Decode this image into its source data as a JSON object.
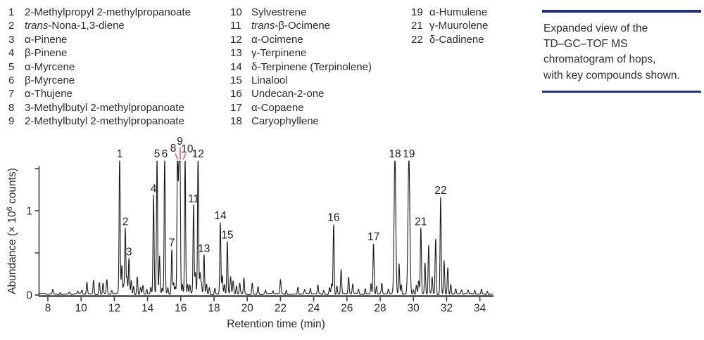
{
  "legend": {
    "columns": [
      [
        {
          "n": "1",
          "pre": "",
          "name": "2-Methylpropyl 2-methylpropanoate"
        },
        {
          "n": "2",
          "pre": "trans",
          "name": "-Nona-1,3-diene"
        },
        {
          "n": "3",
          "pre": "",
          "name": "α-Pinene"
        },
        {
          "n": "4",
          "pre": "",
          "name": "β-Pinene"
        },
        {
          "n": "5",
          "pre": "",
          "name": "α-Myrcene"
        },
        {
          "n": "6",
          "pre": "",
          "name": "β-Myrcene"
        },
        {
          "n": "7",
          "pre": "",
          "name": "α-Thujene"
        },
        {
          "n": "8",
          "pre": "",
          "name": "3-Methylbutyl 2-methylpropanoate"
        },
        {
          "n": "9",
          "pre": "",
          "name": "2-Methylbutyl 2-methylpropanoate"
        }
      ],
      [
        {
          "n": "10",
          "pre": "",
          "name": "Sylvestrene"
        },
        {
          "n": "11",
          "pre": "trans",
          "name": "-β-Ocimene"
        },
        {
          "n": "12",
          "pre": "",
          "name": "α-Ocimene"
        },
        {
          "n": "13",
          "pre": "",
          "name": "γ-Terpinene"
        },
        {
          "n": "14",
          "pre": "",
          "name": "δ-Terpinene (Terpinolene)"
        },
        {
          "n": "15",
          "pre": "",
          "name": "Linalool"
        },
        {
          "n": "16",
          "pre": "",
          "name": "Undecan-2-one"
        },
        {
          "n": "17",
          "pre": "",
          "name": "α-Copaene"
        },
        {
          "n": "18",
          "pre": "",
          "name": "Caryophyllene"
        }
      ],
      [
        {
          "n": "19",
          "pre": "",
          "name": "α-Humulene"
        },
        {
          "n": "21",
          "pre": "",
          "name": "γ-Muurolene"
        },
        {
          "n": "22",
          "pre": "",
          "name": "δ-Cadinene"
        }
      ]
    ]
  },
  "caption": {
    "accent_color": "#262f87",
    "lines": [
      "Expanded view of the",
      "TD–GC–TOF MS",
      "chromatogram of hops,",
      "with key compounds shown."
    ]
  },
  "chart_data": {
    "type": "line",
    "title": "",
    "xlabel": "Retention time (min)",
    "ylabel": "Abundance (× 10⁶ counts)",
    "ylabel_parts": {
      "prefix": "Abundance (× 10",
      "sup": "6",
      "suffix": " counts)"
    },
    "xlim": [
      7.45,
      34.8
    ],
    "ylim": [
      0,
      1.6
    ],
    "x_ticks": [
      8,
      10,
      12,
      14,
      16,
      18,
      20,
      22,
      24,
      26,
      28,
      30,
      32,
      34
    ],
    "y_ticks_major": [
      0,
      1
    ],
    "y_tick_labels": [
      "0",
      "1"
    ],
    "y_ticks_minor": [
      0.5,
      1.5
    ],
    "clip_level": 1.59,
    "grid": false,
    "trace_color": "#1b1b1b",
    "axis_color": "#3f3f3f",
    "label_color": "#1e1e1e",
    "leader_color": "#e85e79",
    "peaks": [
      {
        "t": 8.3,
        "h": 0.055
      },
      {
        "t": 8.75,
        "h": 0.025
      },
      {
        "t": 9.3,
        "h": 0.02
      },
      {
        "t": 9.8,
        "h": 0.03
      },
      {
        "t": 10.05,
        "h": 0.04
      },
      {
        "t": 10.35,
        "h": 0.14
      },
      {
        "t": 10.75,
        "h": 0.16
      },
      {
        "t": 11.1,
        "h": 0.14
      },
      {
        "t": 11.32,
        "h": 0.13
      },
      {
        "t": 11.55,
        "h": 0.17
      },
      {
        "t": 11.85,
        "h": 0.04
      },
      {
        "t": 12.32,
        "h": 1.62,
        "label": "1"
      },
      {
        "t": 12.45,
        "h": 0.34
      },
      {
        "t": 12.56,
        "h": 0.1
      },
      {
        "t": 12.66,
        "h": 0.78,
        "label": "2"
      },
      {
        "t": 12.76,
        "h": 0.2
      },
      {
        "t": 12.88,
        "h": 0.42,
        "label": "3"
      },
      {
        "t": 13.02,
        "h": 0.16
      },
      {
        "t": 13.16,
        "h": 0.1
      },
      {
        "t": 13.38,
        "h": 0.21
      },
      {
        "t": 13.58,
        "h": 0.08
      },
      {
        "t": 13.72,
        "h": 0.1
      },
      {
        "t": 13.95,
        "h": 0.06
      },
      {
        "t": 14.2,
        "h": 0.08
      },
      {
        "t": 14.36,
        "h": 1.17,
        "label": "4"
      },
      {
        "t": 14.57,
        "h": 1.62,
        "label": "5"
      },
      {
        "t": 14.72,
        "h": 0.45
      },
      {
        "t": 14.88,
        "h": 0.07
      },
      {
        "t": 15.03,
        "h": 1.62,
        "label": "6"
      },
      {
        "t": 15.22,
        "h": 0.07
      },
      {
        "t": 15.46,
        "h": 0.53,
        "label": "7"
      },
      {
        "t": 15.57,
        "h": 0.14
      },
      {
        "t": 15.67,
        "h": 0.09
      },
      {
        "t": 15.8,
        "h": 1.62,
        "label": "8",
        "dx": -6,
        "dy": -8
      },
      {
        "t": 15.88,
        "h": 1.32
      },
      {
        "t": 15.95,
        "h": 1.62,
        "label": "9",
        "dx": 0,
        "dy": -18
      },
      {
        "t": 16.1,
        "h": 0.12
      },
      {
        "t": 16.26,
        "h": 1.62,
        "label": "10",
        "dx": 3,
        "dy": -7
      },
      {
        "t": 16.42,
        "h": 0.12
      },
      {
        "t": 16.55,
        "h": 0.1
      },
      {
        "t": 16.77,
        "h": 1.05,
        "label": "11"
      },
      {
        "t": 16.88,
        "h": 0.25
      },
      {
        "t": 17.04,
        "h": 1.62,
        "label": "12"
      },
      {
        "t": 17.16,
        "h": 0.25
      },
      {
        "t": 17.24,
        "h": 0.13
      },
      {
        "t": 17.4,
        "h": 0.46,
        "label": "13"
      },
      {
        "t": 17.55,
        "h": 0.12
      },
      {
        "t": 17.72,
        "h": 0.08
      },
      {
        "t": 18.05,
        "h": 0.07
      },
      {
        "t": 18.38,
        "h": 0.85,
        "label": "14"
      },
      {
        "t": 18.5,
        "h": 0.22
      },
      {
        "t": 18.63,
        "h": 0.12
      },
      {
        "t": 18.8,
        "h": 0.62,
        "label": "15"
      },
      {
        "t": 19.0,
        "h": 0.2
      },
      {
        "t": 19.15,
        "h": 0.15
      },
      {
        "t": 19.35,
        "h": 0.1
      },
      {
        "t": 19.55,
        "h": 0.12
      },
      {
        "t": 19.8,
        "h": 0.19
      },
      {
        "t": 20.3,
        "h": 0.13
      },
      {
        "t": 20.65,
        "h": 0.09
      },
      {
        "t": 21.1,
        "h": 0.04
      },
      {
        "t": 21.55,
        "h": 0.04
      },
      {
        "t": 22.0,
        "h": 0.17
      },
      {
        "t": 22.35,
        "h": 0.05
      },
      {
        "t": 23.05,
        "h": 0.09
      },
      {
        "t": 23.45,
        "h": 0.05
      },
      {
        "t": 23.8,
        "h": 0.07
      },
      {
        "t": 24.25,
        "h": 0.1
      },
      {
        "t": 24.6,
        "h": 0.05
      },
      {
        "t": 24.95,
        "h": 0.08
      },
      {
        "t": 25.08,
        "h": 0.12
      },
      {
        "t": 25.2,
        "h": 0.83,
        "label": "16"
      },
      {
        "t": 25.4,
        "h": 0.1
      },
      {
        "t": 25.65,
        "h": 0.29
      },
      {
        "t": 26.1,
        "h": 0.2
      },
      {
        "t": 26.35,
        "h": 0.12
      },
      {
        "t": 26.7,
        "h": 0.06
      },
      {
        "t": 27.1,
        "h": 0.07
      },
      {
        "t": 27.45,
        "h": 0.13
      },
      {
        "t": 27.6,
        "h": 0.6,
        "label": "17"
      },
      {
        "t": 27.78,
        "h": 0.1
      },
      {
        "t": 28.1,
        "h": 0.12
      },
      {
        "t": 28.5,
        "h": 0.06
      },
      {
        "t": 28.89,
        "h": 1.62,
        "label": "18",
        "w": 0.05
      },
      {
        "t": 29.14,
        "h": 0.36
      },
      {
        "t": 29.27,
        "h": 0.12
      },
      {
        "t": 29.73,
        "h": 1.62,
        "label": "19",
        "w": 0.055
      },
      {
        "t": 30.0,
        "h": 0.06
      },
      {
        "t": 30.18,
        "h": 0.1
      },
      {
        "t": 30.32,
        "h": 0.15
      },
      {
        "t": 30.45,
        "h": 0.78,
        "label": "21"
      },
      {
        "t": 30.7,
        "h": 0.37
      },
      {
        "t": 30.92,
        "h": 0.57
      },
      {
        "t": 31.13,
        "h": 0.2
      },
      {
        "t": 31.34,
        "h": 0.65
      },
      {
        "t": 31.64,
        "h": 1.15,
        "label": "22"
      },
      {
        "t": 31.85,
        "h": 0.4
      },
      {
        "t": 32.07,
        "h": 0.32
      },
      {
        "t": 32.25,
        "h": 0.12
      },
      {
        "t": 32.55,
        "h": 0.06
      },
      {
        "t": 32.9,
        "h": 0.05
      },
      {
        "t": 33.3,
        "h": 0.04
      },
      {
        "t": 33.7,
        "h": 0.05
      },
      {
        "t": 34.1,
        "h": 0.06
      },
      {
        "t": 34.45,
        "h": 0.04
      }
    ],
    "leader_lines": [
      [
        249.0,
        219.0,
        252.5,
        226.5
      ],
      [
        256.0,
        210.5,
        256.0,
        226.5
      ],
      [
        263.5,
        219.5,
        260.5,
        226.5
      ]
    ]
  }
}
